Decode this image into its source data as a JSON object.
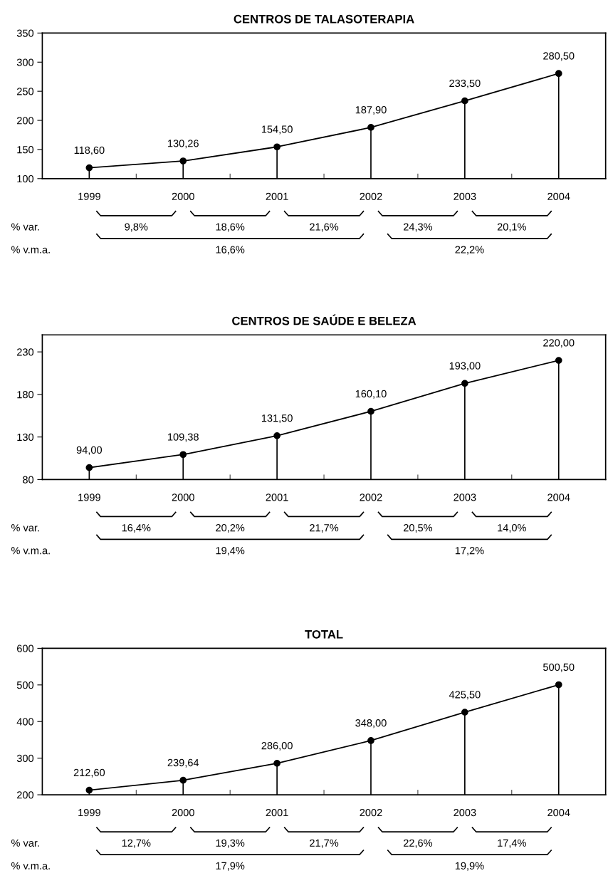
{
  "chart_data": [
    {
      "type": "line",
      "title": "CENTROS DE TALASOTERAPIA",
      "categories": [
        "1999",
        "2000",
        "2001",
        "2002",
        "2003",
        "2004"
      ],
      "series": [
        {
          "color": "#000000",
          "values": [
            118.6,
            130.26,
            154.5,
            187.9,
            233.5,
            280.5
          ],
          "value_labels": [
            "118,60",
            "130,26",
            "154,50",
            "187,90",
            "233,50",
            "280,50"
          ]
        },
        {
          "type": "lollipop",
          "color": "#000000",
          "marker": "circle",
          "values": [
            118.6,
            130.26,
            154.5,
            187.9,
            233.5,
            280.5
          ]
        }
      ],
      "ylim": [
        100,
        350
      ],
      "yticks": [
        100,
        150,
        200,
        250,
        300,
        350
      ],
      "annotations": [
        "% var.",
        "% v.m.a.",
        "9,8%",
        "18,6%",
        "21,6%",
        "24,3%",
        "20,1%",
        "16,6%",
        "22,2%"
      ]
    },
    {
      "type": "line",
      "title": "CENTROS DE SAÚDE E BELEZA",
      "categories": [
        "1999",
        "2000",
        "2001",
        "2002",
        "2003",
        "2004"
      ],
      "series": [
        {
          "color": "#000000",
          "values": [
            94.0,
            109.38,
            131.5,
            160.1,
            193.0,
            220.0
          ],
          "value_labels": [
            "94,00",
            "109,38",
            "131,50",
            "160,10",
            "193,00",
            "220,00"
          ]
        },
        {
          "type": "lollipop",
          "color": "#000000",
          "marker": "circle",
          "values": [
            94.0,
            109.38,
            131.5,
            160.1,
            193.0,
            220.0
          ]
        }
      ],
      "ylim": [
        80,
        250
      ],
      "yticks": [
        80,
        130,
        180,
        230
      ],
      "annotations": [
        "% var.",
        "% v.m.a.",
        "16,4%",
        "20,2%",
        "21,7%",
        "20,5%",
        "14,0%",
        "19,4%",
        "17,2%"
      ]
    },
    {
      "type": "line",
      "title": "TOTAL",
      "categories": [
        "1999",
        "2000",
        "2001",
        "2002",
        "2003",
        "2004"
      ],
      "series": [
        {
          "color": "#000000",
          "values": [
            212.6,
            239.64,
            286.0,
            348.0,
            425.5,
            500.5
          ],
          "value_labels": [
            "212,60",
            "239,64",
            "286,00",
            "348,00",
            "425,50",
            "500,50"
          ]
        },
        {
          "type": "lollipop",
          "color": "#000000",
          "marker": "circle",
          "values": [
            212.6,
            239.64,
            286.0,
            348.0,
            425.5,
            500.5
          ]
        }
      ],
      "ylim": [
        200,
        600
      ],
      "yticks": [
        200,
        300,
        400,
        500,
        600
      ],
      "annotations": [
        "% var.",
        "% v.m.a.",
        "12,7%",
        "19,3%",
        "21,7%",
        "22,6%",
        "17,4%",
        "17,9%",
        "19,9%"
      ]
    }
  ]
}
